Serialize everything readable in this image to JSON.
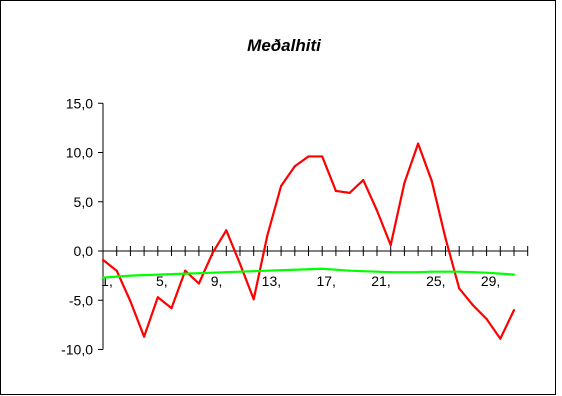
{
  "chart_data": {
    "type": "line",
    "title": "Meðalhiti",
    "xlabel": "",
    "ylabel": "",
    "ylim": [
      -10,
      15
    ],
    "y_ticks": [
      15,
      10,
      5,
      0,
      -5,
      -10
    ],
    "y_tick_labels": [
      "15,0",
      "10,0",
      "5,0",
      "0,0",
      "-5,0",
      "-10,0"
    ],
    "x": [
      1,
      2,
      3,
      4,
      5,
      6,
      7,
      8,
      9,
      10,
      11,
      12,
      13,
      14,
      15,
      16,
      17,
      18,
      19,
      20,
      21,
      22,
      23,
      24,
      25,
      26,
      27,
      28,
      29,
      30,
      31
    ],
    "x_tick_labels": [
      {
        "x": 1,
        "label": "1,"
      },
      {
        "x": 5,
        "label": "5,"
      },
      {
        "x": 9,
        "label": "9,"
      },
      {
        "x": 13,
        "label": "13,"
      },
      {
        "x": 17,
        "label": "17,"
      },
      {
        "x": 21,
        "label": "21,"
      },
      {
        "x": 25,
        "label": "25,"
      },
      {
        "x": 29,
        "label": "29,"
      }
    ],
    "series": [
      {
        "color": "#ff0000",
        "values": [
          -0.9,
          -2.0,
          -5.1,
          -8.7,
          -4.7,
          -5.8,
          -2.0,
          -3.3,
          -0.2,
          2.1,
          -1.3,
          -4.9,
          1.6,
          6.6,
          8.6,
          9.6,
          9.6,
          6.1,
          5.9,
          7.2,
          4.1,
          0.6,
          6.9,
          10.9,
          7.1,
          1.3,
          -3.8,
          -5.5,
          -6.9,
          -8.9,
          -6.0
        ]
      },
      {
        "color": "#00ff00",
        "values": [
          -2.7,
          -2.6,
          -2.5,
          -2.45,
          -2.4,
          -2.35,
          -2.3,
          -2.25,
          -2.2,
          -2.15,
          -2.1,
          -2.05,
          -2.0,
          -1.95,
          -1.9,
          -1.85,
          -1.8,
          -1.9,
          -2.0,
          -2.05,
          -2.1,
          -2.15,
          -2.15,
          -2.15,
          -2.1,
          -2.1,
          -2.1,
          -2.15,
          -2.2,
          -2.3,
          -2.4
        ]
      }
    ]
  }
}
